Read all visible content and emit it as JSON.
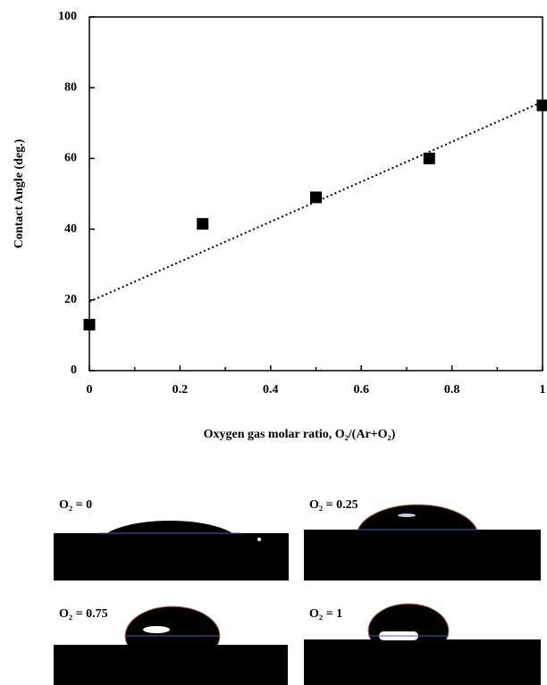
{
  "chart_data": {
    "type": "scatter",
    "x_label": "Oxygen gas molar ratio, O₂/(Ar+O₂)",
    "y_label": "Contact Angle (deg.)",
    "x": [
      0,
      0.25,
      0.5,
      0.75,
      1
    ],
    "values": [
      13,
      41.5,
      49,
      60,
      75
    ],
    "color": "#000000",
    "trendline": {
      "x": [
        0,
        1
      ],
      "values": [
        19.5,
        76
      ]
    },
    "xlim": [
      0,
      1
    ],
    "ylim": [
      0,
      100
    ],
    "xticks": [
      0,
      0.2,
      0.4,
      0.6,
      0.8,
      1
    ],
    "xminor_ticks": [
      0.1,
      0.3,
      0.5,
      0.7,
      0.9
    ],
    "yticks": [
      0,
      20,
      40,
      60,
      80,
      100
    ]
  },
  "images": [
    {
      "label": "O₂ = 0"
    },
    {
      "label": "O₂ = 0.25"
    },
    {
      "label": "O₂ = 0.75"
    },
    {
      "label": "O₂ = 1"
    }
  ]
}
